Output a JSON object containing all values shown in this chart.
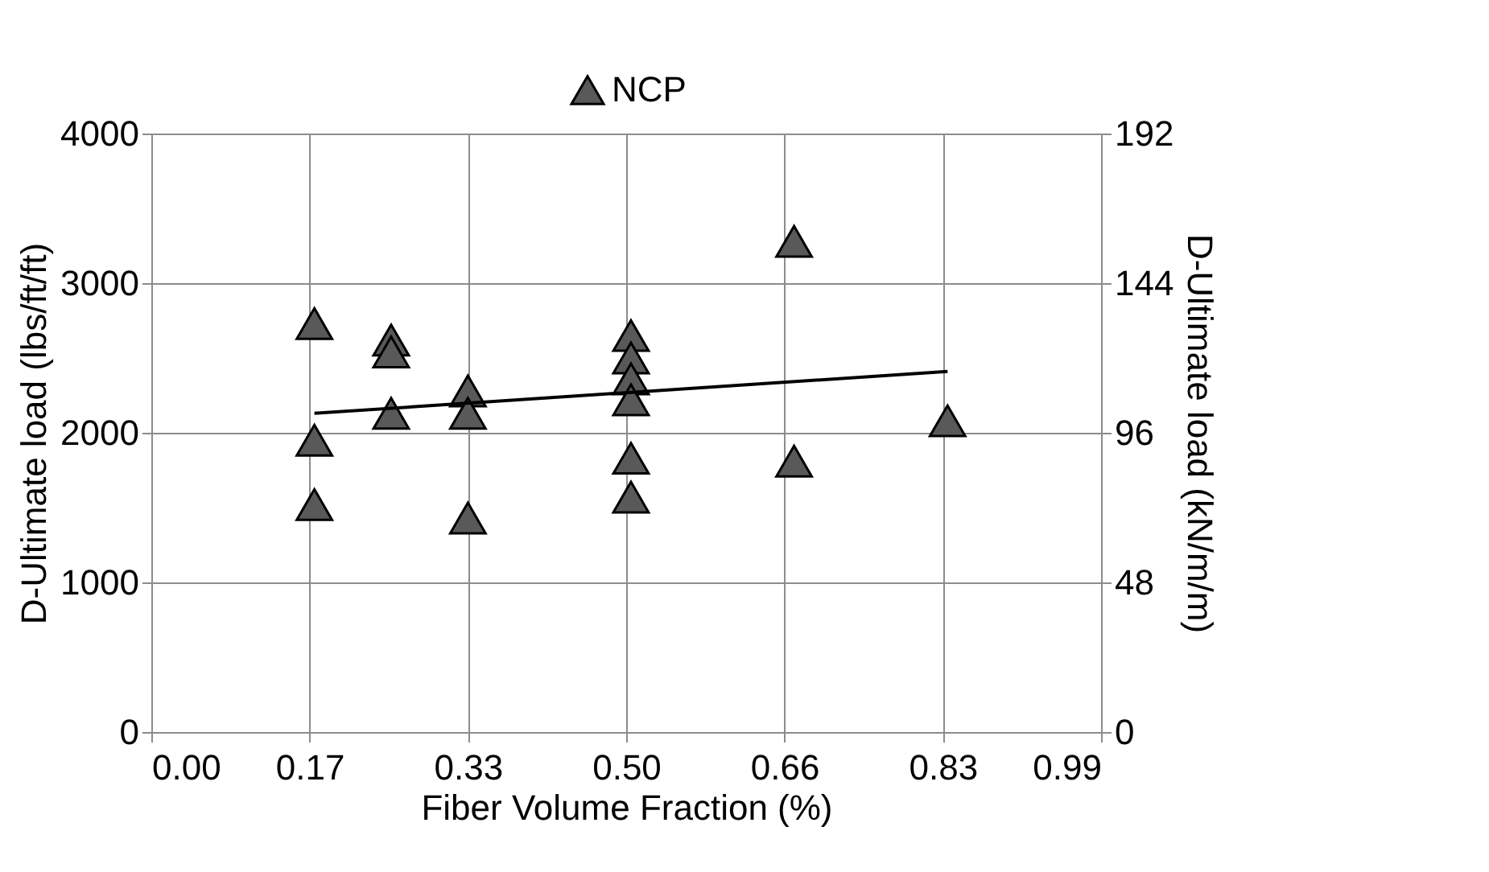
{
  "chart_data": {
    "type": "scatter",
    "xlabel": "Fiber Volume Fraction (%)",
    "ylabel": "D-Ultimate load (lbs/ft/ft)",
    "y2label": "D-Ultimate load (kN/m/m)",
    "xlim": [
      0,
      0.99
    ],
    "xticks": [
      {
        "value": 0,
        "label": "0.00"
      },
      {
        "value": 0.165,
        "label": "0.17"
      },
      {
        "value": 0.33,
        "label": "0.33"
      },
      {
        "value": 0.495,
        "label": "0.50"
      },
      {
        "value": 0.66,
        "label": "0.66"
      },
      {
        "value": 0.825,
        "label": "0.83"
      },
      {
        "value": 0.99,
        "label": "0.99"
      }
    ],
    "ylim": [
      0,
      4000
    ],
    "yticks": [
      0,
      1000,
      2000,
      3000,
      4000
    ],
    "y2lim": [
      0,
      192
    ],
    "y2ticks": [
      0,
      48,
      96,
      144,
      192
    ],
    "grid": true,
    "legend": "top",
    "marker": "triangle",
    "series": [
      {
        "name": "NCP",
        "color": "#595959",
        "x": [
          0.17,
          0.17,
          0.17,
          0.25,
          0.25,
          0.25,
          0.33,
          0.33,
          0.33,
          0.5,
          0.5,
          0.5,
          0.5,
          0.5,
          0.5,
          0.67,
          0.67,
          0.83
        ],
        "values": [
          2730,
          1950,
          1520,
          2620,
          2540,
          2130,
          2280,
          2130,
          1430,
          2650,
          2500,
          2360,
          2220,
          1830,
          1570,
          3280,
          1810,
          2080
        ]
      },
      {
        "type": "line",
        "color": "#000000",
        "marker": "none",
        "x": [
          0.17,
          0.83
        ],
        "values": [
          2130,
          2410
        ]
      }
    ]
  }
}
